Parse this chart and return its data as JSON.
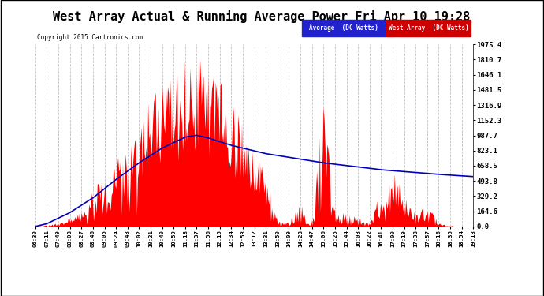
{
  "title": "West Array Actual & Running Average Power Fri Apr 10 19:28",
  "copyright": "Copyright 2015 Cartronics.com",
  "legend_avg": "Average  (DC Watts)",
  "legend_west": "West Array  (DC Watts)",
  "y_ticks": [
    0.0,
    164.6,
    329.2,
    493.8,
    658.5,
    823.1,
    987.7,
    1152.3,
    1316.9,
    1481.5,
    1646.1,
    1810.7,
    1975.4
  ],
  "y_max": 1975.4,
  "y_min": 0.0,
  "background_color": "#ffffff",
  "plot_bg_color": "#ffffff",
  "grid_color": "#b0b0b0",
  "bar_color": "#ff0000",
  "avg_line_color": "#0000bb",
  "title_fontsize": 11,
  "tick_labels": [
    "06:30",
    "07:11",
    "07:49",
    "08:08",
    "08:27",
    "08:46",
    "09:05",
    "09:24",
    "09:43",
    "10:02",
    "10:21",
    "10:40",
    "10:59",
    "11:18",
    "11:37",
    "11:56",
    "12:15",
    "12:34",
    "12:53",
    "13:12",
    "13:31",
    "13:50",
    "14:09",
    "14:28",
    "14:47",
    "15:06",
    "15:25",
    "15:44",
    "16:03",
    "16:22",
    "16:41",
    "17:00",
    "17:19",
    "17:38",
    "17:57",
    "18:16",
    "18:35",
    "18:54",
    "19:13"
  ],
  "n_ticks": 39
}
